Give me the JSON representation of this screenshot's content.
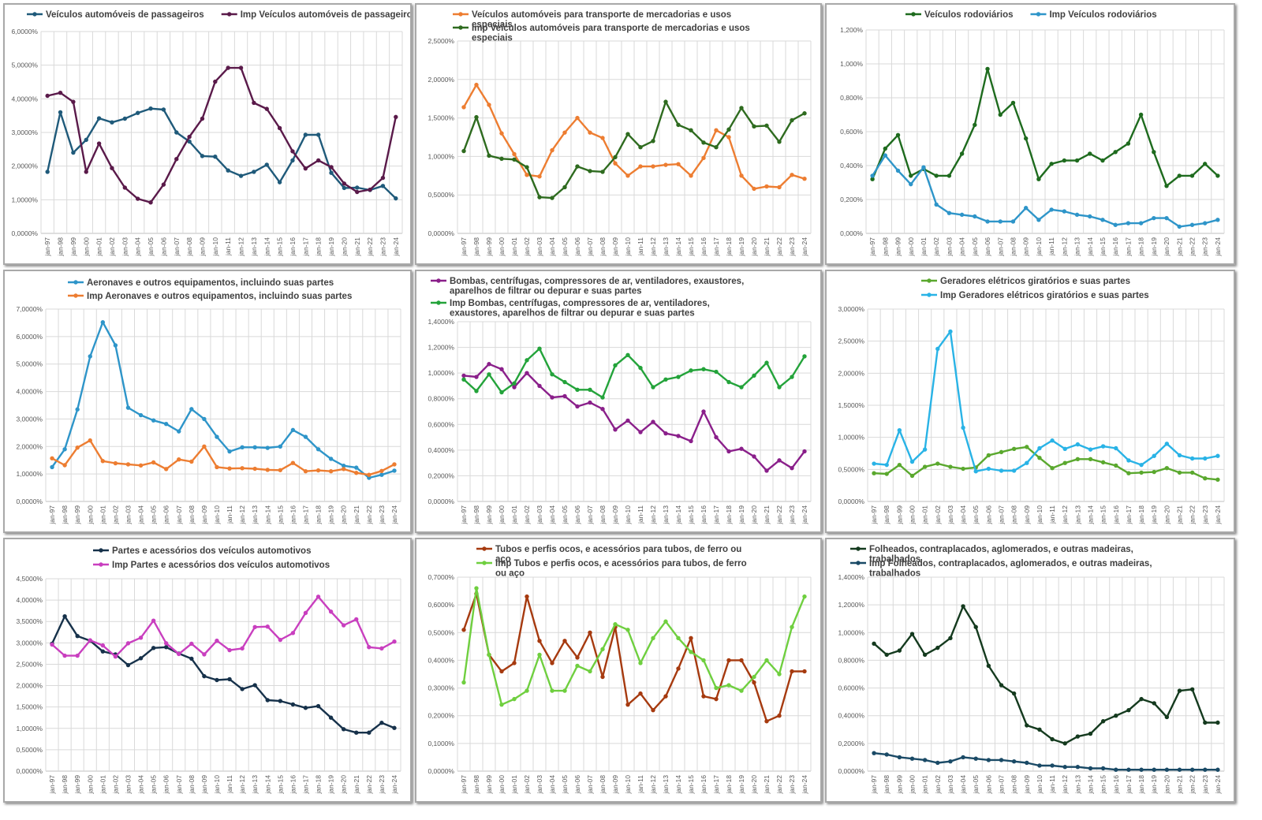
{
  "categories": [
    "jan-97",
    "jan-98",
    "jan-99",
    "jan-00",
    "jan-01",
    "jan-02",
    "jan-03",
    "jan-04",
    "jan-05",
    "jan-06",
    "jan-07",
    "jan-08",
    "jan-09",
    "jan-10",
    "jan-11",
    "jan-12",
    "jan-13",
    "jan-14",
    "jan-15",
    "jan-16",
    "jan-17",
    "jan-18",
    "jan-19",
    "jan-20",
    "jan-21",
    "jan-22",
    "jan-23",
    "jan-24"
  ],
  "chart_data": [
    {
      "type": "line",
      "ylim": [
        0,
        6
      ],
      "ystep": 1,
      "ydecimals": 4,
      "yticklabels": [
        "0,0000%",
        "1,0000%",
        "2,0000%",
        "3,0000%",
        "4,0000%",
        "5,0000%",
        "6,0000%"
      ],
      "legend": "top-inline",
      "series": [
        {
          "name": "Veículos automóveis de passageiros",
          "color": "#1f5a7a",
          "values": [
            1.83,
            3.6,
            2.4,
            2.78,
            3.42,
            3.3,
            3.41,
            3.58,
            3.71,
            3.68,
            3.0,
            2.73,
            2.3,
            2.28,
            1.87,
            1.71,
            1.83,
            2.04,
            1.52,
            2.17,
            2.93,
            2.93,
            1.8,
            1.35,
            1.36,
            1.29,
            1.41,
            1.04
          ]
        },
        {
          "name": "Imp Veículos automóveis de passageiros",
          "color": "#5a1a4a",
          "values": [
            4.09,
            4.18,
            3.91,
            1.83,
            2.67,
            1.94,
            1.36,
            1.03,
            0.92,
            1.45,
            2.21,
            2.87,
            3.41,
            4.51,
            4.92,
            4.92,
            3.88,
            3.7,
            3.13,
            2.44,
            1.93,
            2.17,
            1.97,
            1.48,
            1.23,
            1.3,
            1.65,
            3.46
          ]
        }
      ]
    },
    {
      "type": "line",
      "ylim": [
        0,
        2.5
      ],
      "ystep": 0.5,
      "ydecimals": 4,
      "yticklabels": [
        "0,0000%",
        "0,5000%",
        "1,0000%",
        "1,5000%",
        "2,0000%",
        "2,5000%"
      ],
      "legend": "top-stacked",
      "series": [
        {
          "name": "Veículos automóveis para transporte de mercadorias e usos especiais",
          "color": "#ed7d31",
          "values": [
            1.64,
            1.93,
            1.67,
            1.3,
            1.03,
            0.76,
            0.74,
            1.08,
            1.31,
            1.5,
            1.31,
            1.24,
            0.91,
            0.75,
            0.87,
            0.87,
            0.89,
            0.9,
            0.75,
            0.98,
            1.34,
            1.25,
            0.75,
            0.58,
            0.61,
            0.6,
            0.76,
            0.71
          ]
        },
        {
          "name": "Imp Veículos automóveis para transporte de mercadorias e usos especiais",
          "color": "#2e6b1f",
          "values": [
            1.07,
            1.51,
            1.01,
            0.97,
            0.96,
            0.86,
            0.47,
            0.46,
            0.6,
            0.87,
            0.81,
            0.8,
            0.99,
            1.29,
            1.12,
            1.2,
            1.71,
            1.41,
            1.34,
            1.18,
            1.12,
            1.35,
            1.63,
            1.39,
            1.4,
            1.19,
            1.47,
            1.56
          ]
        }
      ]
    },
    {
      "type": "line",
      "ylim": [
        0,
        1.2
      ],
      "ystep": 0.2,
      "ydecimals": 3,
      "yticklabels": [
        "0,000%",
        "0,200%",
        "0,400%",
        "0,600%",
        "0,800%",
        "1,000%",
        "1,200%"
      ],
      "legend": "top-inline",
      "series": [
        {
          "name": "Veículos rodoviários",
          "color": "#1e6b1e",
          "values": [
            0.32,
            0.5,
            0.58,
            0.34,
            0.38,
            0.34,
            0.34,
            0.47,
            0.64,
            0.97,
            0.7,
            0.77,
            0.56,
            0.32,
            0.41,
            0.43,
            0.43,
            0.47,
            0.43,
            0.48,
            0.53,
            0.7,
            0.48,
            0.28,
            0.34,
            0.34,
            0.41,
            0.34
          ]
        },
        {
          "name": "Imp Veículos rodoviários",
          "color": "#2e95c9",
          "values": [
            0.34,
            0.46,
            0.37,
            0.29,
            0.39,
            0.17,
            0.12,
            0.11,
            0.1,
            0.07,
            0.07,
            0.07,
            0.15,
            0.08,
            0.14,
            0.13,
            0.11,
            0.1,
            0.08,
            0.05,
            0.06,
            0.06,
            0.09,
            0.09,
            0.04,
            0.05,
            0.06,
            0.08
          ]
        }
      ]
    },
    {
      "type": "line",
      "ylim": [
        0,
        7
      ],
      "ystep": 1,
      "ydecimals": 4,
      "yticklabels": [
        "0,0000%",
        "1,0000%",
        "2,0000%",
        "3,0000%",
        "4,0000%",
        "5,0000%",
        "6,0000%",
        "7,0000%"
      ],
      "legend": "top-stacked",
      "series": [
        {
          "name": "Aeronaves e outros equipamentos, incluindo suas partes",
          "color": "#2e95c9",
          "values": [
            1.25,
            1.9,
            3.35,
            5.28,
            6.52,
            5.68,
            3.41,
            3.14,
            2.95,
            2.82,
            2.55,
            3.36,
            3.0,
            2.35,
            1.82,
            1.97,
            1.97,
            1.95,
            2.0,
            2.6,
            2.35,
            1.9,
            1.55,
            1.3,
            1.23,
            0.86,
            0.97,
            1.12
          ]
        },
        {
          "name": "Imp Aeronaves e outros equipamentos, incluindo suas partes",
          "color": "#ed7d31",
          "values": [
            1.57,
            1.32,
            1.96,
            2.22,
            1.47,
            1.39,
            1.35,
            1.31,
            1.42,
            1.18,
            1.53,
            1.45,
            2.0,
            1.25,
            1.2,
            1.21,
            1.19,
            1.15,
            1.14,
            1.4,
            1.1,
            1.13,
            1.1,
            1.18,
            1.04,
            0.97,
            1.11,
            1.35
          ]
        }
      ]
    },
    {
      "type": "line",
      "ylim": [
        0,
        1.4
      ],
      "ystep": 0.2,
      "ydecimals": 4,
      "yticklabels": [
        "0,0000%",
        "0,2000%",
        "0,4000%",
        "0,6000%",
        "0,8000%",
        "1,0000%",
        "1,2000%",
        "1,4000%"
      ],
      "legend": "top-stacked",
      "series": [
        {
          "name": "Bombas, centrífugas, compressores de ar, ventiladores, exaustores, aparelhos de filtrar ou depurar e suas partes",
          "color": "#8a1f8a",
          "values": [
            0.98,
            0.97,
            1.07,
            1.03,
            0.89,
            1.0,
            0.9,
            0.81,
            0.82,
            0.74,
            0.77,
            0.72,
            0.56,
            0.63,
            0.54,
            0.62,
            0.53,
            0.51,
            0.47,
            0.7,
            0.5,
            0.39,
            0.41,
            0.35,
            0.24,
            0.32,
            0.26,
            0.39
          ]
        },
        {
          "name": "Imp Bombas, centrífugas, compressores de ar, ventiladores, exaustores, aparelhos de filtrar ou depurar e suas partes",
          "color": "#23a33a",
          "values": [
            0.95,
            0.86,
            0.99,
            0.85,
            0.92,
            1.1,
            1.19,
            0.99,
            0.93,
            0.87,
            0.87,
            0.81,
            1.06,
            1.14,
            1.04,
            0.89,
            0.95,
            0.97,
            1.02,
            1.03,
            1.01,
            0.93,
            0.89,
            0.98,
            1.08,
            0.89,
            0.97,
            1.13
          ]
        }
      ]
    },
    {
      "type": "line",
      "ylim": [
        0,
        3
      ],
      "ystep": 0.5,
      "ydecimals": 4,
      "yticklabels": [
        "0,0000%",
        "0,5000%",
        "1,0000%",
        "1,5000%",
        "2,0000%",
        "2,5000%",
        "3,0000%"
      ],
      "legend": "top-stacked",
      "series": [
        {
          "name": "Geradores elétricos giratórios e suas partes",
          "color": "#5aa82e",
          "values": [
            0.44,
            0.43,
            0.57,
            0.4,
            0.54,
            0.59,
            0.54,
            0.51,
            0.53,
            0.72,
            0.77,
            0.82,
            0.85,
            0.68,
            0.52,
            0.6,
            0.66,
            0.66,
            0.61,
            0.56,
            0.44,
            0.45,
            0.46,
            0.52,
            0.45,
            0.45,
            0.36,
            0.34
          ]
        },
        {
          "name": "Imp Geradores elétricos giratórios e suas partes",
          "color": "#29b3e6",
          "values": [
            0.59,
            0.57,
            1.11,
            0.62,
            0.81,
            2.38,
            2.65,
            1.15,
            0.47,
            0.51,
            0.48,
            0.48,
            0.6,
            0.83,
            0.95,
            0.82,
            0.89,
            0.81,
            0.86,
            0.83,
            0.64,
            0.57,
            0.71,
            0.9,
            0.72,
            0.67,
            0.67,
            0.71
          ]
        }
      ]
    },
    {
      "type": "line",
      "ylim": [
        0,
        4.5
      ],
      "ystep": 0.5,
      "ydecimals": 4,
      "yticklabels": [
        "0,0000%",
        "0,5000%",
        "1,0000%",
        "1,5000%",
        "2,0000%",
        "2,5000%",
        "3,0000%",
        "3,5000%",
        "4,0000%",
        "4,5000%"
      ],
      "legend": "top-stacked",
      "series": [
        {
          "name": "Partes e acessórios dos veículos automotivos",
          "color": "#16314a",
          "values": [
            2.98,
            3.62,
            3.16,
            3.05,
            2.8,
            2.73,
            2.48,
            2.64,
            2.88,
            2.9,
            2.75,
            2.63,
            2.22,
            2.13,
            2.15,
            1.92,
            2.01,
            1.66,
            1.64,
            1.56,
            1.48,
            1.52,
            1.25,
            0.98,
            0.9,
            0.9,
            1.13,
            1.01
          ]
        },
        {
          "name": "Imp Partes e acessórios dos veículos automotivos",
          "color": "#c93fbf",
          "values": [
            2.96,
            2.7,
            2.7,
            3.06,
            2.94,
            2.68,
            2.99,
            3.12,
            3.52,
            2.99,
            2.74,
            2.98,
            2.73,
            3.05,
            2.83,
            2.87,
            3.37,
            3.38,
            3.07,
            3.23,
            3.7,
            4.08,
            3.73,
            3.41,
            3.55,
            2.9,
            2.87,
            3.03
          ]
        }
      ]
    },
    {
      "type": "line",
      "ylim": [
        0,
        0.7
      ],
      "ystep": 0.1,
      "ydecimals": 4,
      "yticklabels": [
        "0,0000%",
        "0,1000%",
        "0,2000%",
        "0,3000%",
        "0,4000%",
        "0,5000%",
        "0,6000%",
        "0,7000%"
      ],
      "legend": "top-stacked",
      "series": [
        {
          "name": "Tubos e perfis ocos, e acessórios para tubos, de ferro ou aço",
          "color": "#a63a0f",
          "values": [
            0.51,
            0.64,
            0.42,
            0.36,
            0.39,
            0.63,
            0.47,
            0.39,
            0.47,
            0.41,
            0.5,
            0.34,
            0.52,
            0.24,
            0.28,
            0.22,
            0.27,
            0.37,
            0.48,
            0.27,
            0.26,
            0.4,
            0.4,
            0.32,
            0.18,
            0.2,
            0.36,
            0.36
          ]
        },
        {
          "name": "Imp Tubos e perfis ocos, e acessórios para tubos, de ferro ou aço",
          "color": "#6fcf3f",
          "values": [
            0.32,
            0.66,
            0.42,
            0.24,
            0.26,
            0.29,
            0.42,
            0.29,
            0.29,
            0.38,
            0.36,
            0.44,
            0.53,
            0.51,
            0.39,
            0.48,
            0.54,
            0.48,
            0.43,
            0.4,
            0.3,
            0.31,
            0.29,
            0.34,
            0.4,
            0.35,
            0.52,
            0.63
          ]
        }
      ]
    },
    {
      "type": "line",
      "ylim": [
        0,
        1.4
      ],
      "ystep": 0.2,
      "ydecimals": 4,
      "yticklabels": [
        "0,0000%",
        "0,2000%",
        "0,4000%",
        "0,6000%",
        "0,8000%",
        "1,0000%",
        "1,2000%",
        "1,4000%"
      ],
      "legend": "top-stacked",
      "series": [
        {
          "name": "Folheados, contraplacados, aglomerados, e outras madeiras, trabalhados",
          "color": "#143a1e",
          "values": [
            0.92,
            0.84,
            0.87,
            0.99,
            0.84,
            0.89,
            0.96,
            1.19,
            1.04,
            0.76,
            0.62,
            0.56,
            0.33,
            0.3,
            0.23,
            0.2,
            0.25,
            0.27,
            0.36,
            0.4,
            0.44,
            0.52,
            0.49,
            0.39,
            0.58,
            0.59,
            0.35,
            0.35
          ]
        },
        {
          "name": "Imp Folheados, contraplacados, aglomerados, e outras madeiras, trabalhados",
          "color": "#1a4a66",
          "values": [
            0.13,
            0.12,
            0.1,
            0.09,
            0.08,
            0.06,
            0.07,
            0.1,
            0.09,
            0.08,
            0.08,
            0.07,
            0.06,
            0.04,
            0.04,
            0.03,
            0.03,
            0.02,
            0.02,
            0.01,
            0.01,
            0.01,
            0.01,
            0.01,
            0.01,
            0.01,
            0.01,
            0.01
          ]
        }
      ]
    }
  ]
}
